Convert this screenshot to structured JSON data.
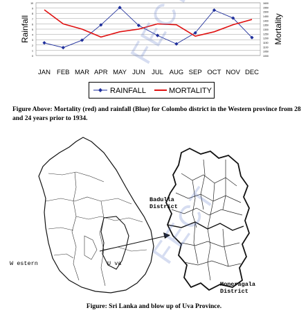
{
  "chart_data": {
    "type": "line",
    "categories": [
      "JAN",
      "FEB",
      "MAR",
      "APR",
      "MAY",
      "JUN",
      "JUL",
      "AUG",
      "SEP",
      "OCT",
      "NOV",
      "DEC"
    ],
    "series": [
      {
        "name": "RAINFALL",
        "color": "#1f2f9c",
        "axis": "left",
        "marker": "diamond",
        "values": [
          2.4,
          1.5,
          2.9,
          5.8,
          9.1,
          5.7,
          3.8,
          2.2,
          4.3,
          8.6,
          7.1,
          3.4
        ]
      },
      {
        "name": "MORTALITY",
        "color": "#e01010",
        "axis": "right",
        "marker": "none",
        "values": [
          1520,
          1360,
          1300,
          1210,
          1270,
          1300,
          1360,
          1350,
          1220,
          1270,
          1350,
          1410
        ]
      }
    ],
    "ylabel": "Rainfall",
    "y2label": "Mortality",
    "ylim": [
      0,
      10
    ],
    "y2lim": [
      1000,
      1600
    ],
    "yticks": [
      "10",
      "9",
      "8",
      "7",
      "6",
      "5",
      "4",
      "3",
      "2",
      "1",
      "0"
    ],
    "y2ticks": [
      "1600",
      "1550",
      "1500",
      "1450",
      "1400",
      "1350",
      "1300",
      "1250",
      "1200",
      "1150",
      "1100",
      "1050",
      "1000"
    ],
    "grid": true,
    "legend_position": "bottom"
  },
  "captions": {
    "chart": "Figure Above: Mortality (red) and rainfall (Blue) for Colombo district in the  Western province from 28 and 24 years prior to 1934.",
    "map": "Figure: Sri Lanka and blow up of Uva Province."
  },
  "map_labels": {
    "western": "W estern",
    "uva": "U va",
    "badulla": "Badulla\nDistrict",
    "moneragala": "Moneragala\nDistrict"
  },
  "watermark": "FECT",
  "colors": {
    "rainfall": "#1f2f9c",
    "mortality": "#e01010"
  }
}
